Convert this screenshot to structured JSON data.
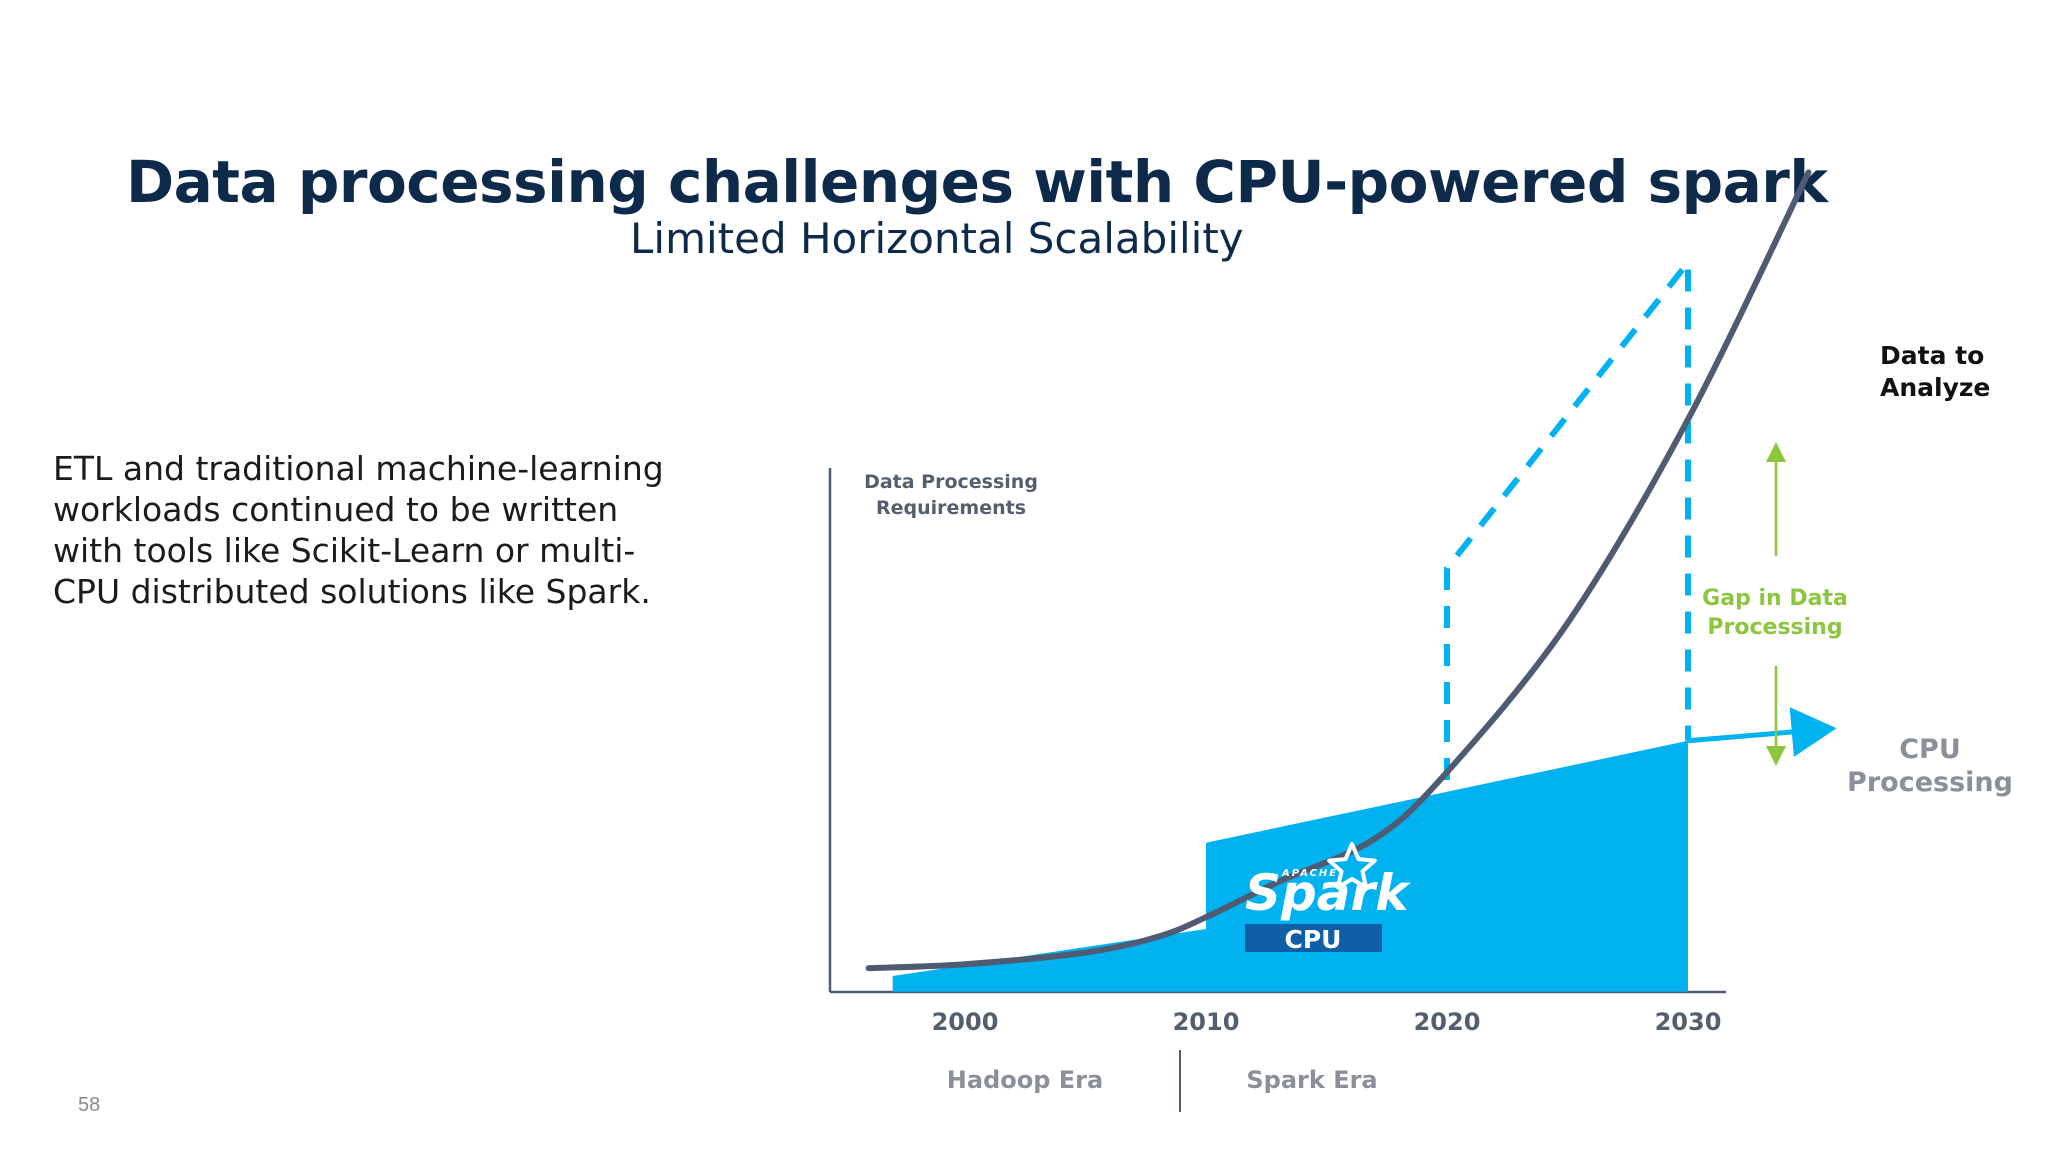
{
  "slide": {
    "title": "Data processing challenges with CPU-powered spark",
    "subtitle": "Limited Horizontal Scalability",
    "body": "ETL and traditional machine-learning workloads continued to be written with tools like Scikit-Learn or multi-CPU distributed solutions like Spark.",
    "page_number": "58"
  },
  "chart_data": {
    "type": "area",
    "title": "",
    "ylabel_lines": [
      "Data Processing",
      "Requirements"
    ],
    "xlabel": "",
    "x_ticks": [
      "2000",
      "2010",
      "2020",
      "2030"
    ],
    "grid": false,
    "series": [
      {
        "name": "Data to Analyze",
        "name_lines": [
          "Data to",
          "Analyze"
        ],
        "color": "#4f5b72",
        "style": "solid curve",
        "x": [
          1996,
          2000,
          2005,
          2008,
          2010,
          2013,
          2017,
          2020,
          2025,
          2030,
          2035
        ],
        "y": [
          2,
          3,
          6,
          10,
          15,
          24,
          35,
          52,
          90,
          142,
          205
        ]
      },
      {
        "name": "CPU Processing",
        "name_lines": [
          "CPU",
          "Processing"
        ],
        "color": "#00b3f0",
        "style": "filled area with arrow",
        "segments": [
          {
            "x": [
              1997,
              2010
            ],
            "y": [
              0,
              12
            ]
          },
          {
            "x": [
              2010,
              2030
            ],
            "y": [
              34,
              60
            ]
          }
        ],
        "arrow_to": {
          "x": 2036,
          "y": 63
        }
      },
      {
        "name": "",
        "color": "#00b3f0",
        "style": "dashed",
        "x": [
          2020,
          2020,
          2030,
          2030
        ],
        "y": [
          50,
          104,
          182,
          60
        ]
      }
    ],
    "annotations": {
      "gap_label_lines": [
        "Gap in Data",
        "Processing"
      ],
      "gap_color": "#8cc63f",
      "cpu_badge": "CPU",
      "spark_logo_text": "Spark",
      "spark_logo_small": "APACHE"
    },
    "eras": [
      {
        "label": "Hadoop Era"
      },
      {
        "label": "Spark Era"
      }
    ],
    "ylim": [
      0,
      210
    ],
    "xlim": [
      1995,
      2036
    ]
  }
}
